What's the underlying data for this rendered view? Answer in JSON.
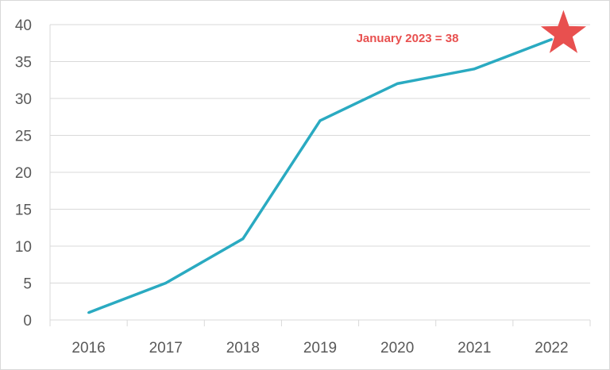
{
  "chart_data": {
    "type": "line",
    "categories": [
      "2016",
      "2017",
      "2018",
      "2019",
      "2020",
      "2021",
      "2022"
    ],
    "series": [
      {
        "values": [
          1,
          5,
          11,
          27,
          32,
          34,
          38
        ]
      }
    ],
    "marker": {
      "label": "January 2023 = 38",
      "value": 38,
      "shape": "star"
    },
    "title": "",
    "xlabel": "",
    "ylabel": "",
    "ylim": [
      0,
      40
    ],
    "yticks": [
      0,
      5,
      10,
      15,
      20,
      25,
      30,
      35,
      40
    ],
    "grid": true,
    "legend": "none",
    "colors": {
      "line": "#2aaac1",
      "marker": "#e8504f",
      "annotation": "#e8504f",
      "grid": "#d9d9d9"
    }
  }
}
